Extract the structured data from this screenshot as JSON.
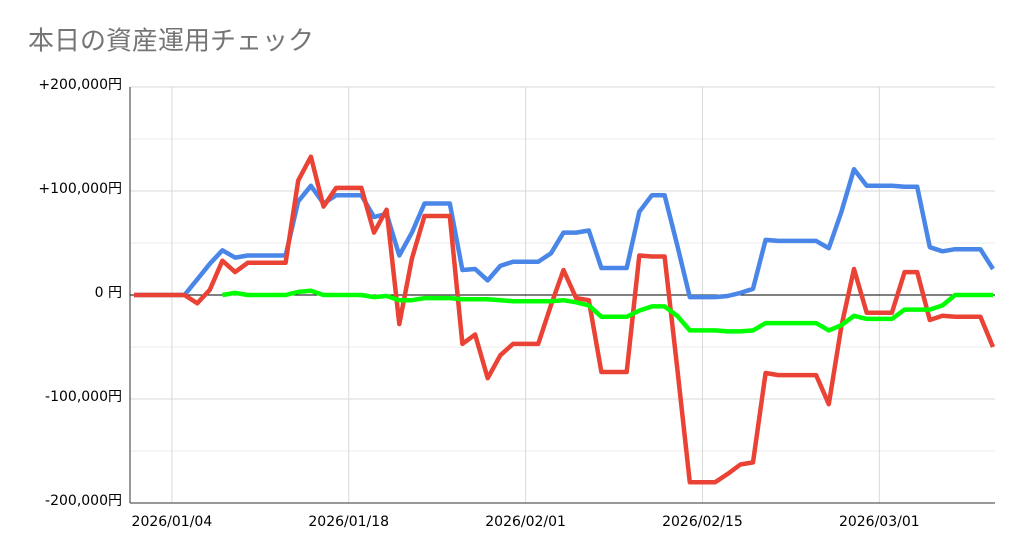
{
  "chart_data": {
    "type": "line",
    "title": "本日の資産運用チェック",
    "x": [
      "2026/01/01",
      "2026/01/02",
      "2026/01/03",
      "2026/01/04",
      "2026/01/05",
      "2026/01/06",
      "2026/01/07",
      "2026/01/08",
      "2026/01/09",
      "2026/01/10",
      "2026/01/11",
      "2026/01/12",
      "2026/01/13",
      "2026/01/14",
      "2026/01/15",
      "2026/01/16",
      "2026/01/17",
      "2026/01/18",
      "2026/01/19",
      "2026/01/20",
      "2026/01/21",
      "2026/01/22",
      "2026/01/23",
      "2026/01/24",
      "2026/01/25",
      "2026/01/26",
      "2026/01/27",
      "2026/01/28",
      "2026/01/29",
      "2026/01/30",
      "2026/01/31",
      "2026/02/01",
      "2026/02/02",
      "2026/02/03",
      "2026/02/04",
      "2026/02/05",
      "2026/02/06",
      "2026/02/07",
      "2026/02/08",
      "2026/02/09",
      "2026/02/10",
      "2026/02/11",
      "2026/02/12",
      "2026/02/13",
      "2026/02/14",
      "2026/02/15",
      "2026/02/16",
      "2026/02/17",
      "2026/02/18",
      "2026/02/19",
      "2026/02/20",
      "2026/02/21",
      "2026/02/22",
      "2026/02/23",
      "2026/02/24",
      "2026/02/25",
      "2026/02/26",
      "2026/02/27",
      "2026/02/28",
      "2026/03/01",
      "2026/03/02",
      "2026/03/03",
      "2026/03/04",
      "2026/03/05",
      "2026/03/06",
      "2026/03/07",
      "2026/03/08",
      "2026/03/09",
      "2026/03/10"
    ],
    "series": [
      {
        "color": "#4a86e8",
        "values": [
          0,
          0,
          0,
          0,
          0,
          15000,
          30000,
          43000,
          36000,
          38000,
          38000,
          38000,
          38000,
          90000,
          105000,
          88000,
          96000,
          96000,
          96000,
          75000,
          78000,
          38000,
          60000,
          88000,
          88000,
          88000,
          24000,
          25000,
          14000,
          28000,
          32000,
          32000,
          32000,
          40000,
          60000,
          60000,
          62000,
          26000,
          26000,
          26000,
          80000,
          96000,
          96000,
          48000,
          -2000,
          -2000,
          -2000,
          -1000,
          2000,
          6000,
          53000,
          52000,
          52000,
          52000,
          52000,
          45000,
          80000,
          121000,
          105000,
          105000,
          105000,
          104000,
          104000,
          46000,
          42000,
          44000,
          44000,
          44000,
          25000
        ]
      },
      {
        "color": "#ea4335",
        "values": [
          0,
          0,
          0,
          0,
          0,
          -8000,
          5000,
          33000,
          22000,
          31000,
          31000,
          31000,
          31000,
          110000,
          133000,
          85000,
          103000,
          103000,
          103000,
          60000,
          82000,
          -28000,
          35000,
          76000,
          76000,
          76000,
          -47000,
          -38000,
          -80000,
          -58000,
          -47000,
          -47000,
          -47000,
          -10000,
          24000,
          -3000,
          -5000,
          -74000,
          -74000,
          -74000,
          38000,
          37000,
          37000,
          -70000,
          -180000,
          -180000,
          -180000,
          -172000,
          -163000,
          -161000,
          -75000,
          -77000,
          -77000,
          -77000,
          -77000,
          -105000,
          -30000,
          25000,
          -17000,
          -17000,
          -17000,
          22000,
          22000,
          -24000,
          -20000,
          -21000,
          -21000,
          -21000,
          -50000
        ]
      },
      {
        "color": "#00ff00",
        "values": [
          null,
          null,
          null,
          null,
          null,
          null,
          null,
          0,
          2000,
          0,
          0,
          0,
          0,
          3000,
          4000,
          0,
          0,
          0,
          0,
          -2000,
          -1000,
          -5000,
          -5000,
          -3000,
          -3000,
          -3000,
          -4000,
          -4000,
          -4000,
          -5000,
          -6000,
          -6000,
          -6000,
          -6000,
          -5000,
          -7000,
          -10000,
          -21000,
          -21000,
          -21000,
          -15000,
          -11000,
          -11000,
          -20000,
          -34000,
          -34000,
          -34000,
          -35000,
          -35000,
          -34000,
          -27000,
          -27000,
          -27000,
          -27000,
          -27000,
          -34000,
          -29000,
          -20000,
          -23000,
          -23000,
          -23000,
          -14000,
          -14000,
          -14000,
          -10000,
          0,
          0,
          0,
          0
        ]
      }
    ],
    "xlim": [
      "2026/01/01",
      "2026/03/10"
    ],
    "xticks": [
      "2026/01/04",
      "2026/01/18",
      "2026/02/01",
      "2026/02/15",
      "2026/03/01"
    ],
    "ylim": [
      -200000,
      200000
    ],
    "yticks": [
      {
        "value": 200000,
        "label": "+200,000円"
      },
      {
        "value": 100000,
        "label": "+100,000円"
      },
      {
        "value": 0,
        "label": "0 円"
      },
      {
        "value": -100000,
        "label": "-100,000円"
      },
      {
        "value": -200000,
        "label": "-200,000円"
      }
    ],
    "minor_yticks": [
      150000,
      50000,
      -50000,
      -150000
    ],
    "grid": true
  }
}
